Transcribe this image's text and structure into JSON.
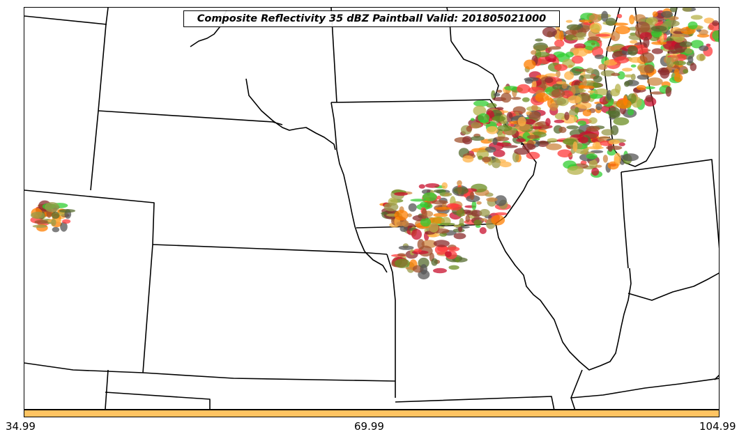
{
  "title": "Composite Reflectivity 35 dBZ Paintball Valid: 201805021000",
  "colorbar": {
    "color": "#ffc462",
    "ticks": [
      "34.99",
      "69.99",
      "104.99"
    ]
  },
  "palette": [
    "#ff3b3b",
    "#ff7f00",
    "#ffb347",
    "#b5b14a",
    "#9a9a4a",
    "#8b2c2c",
    "#c8102e",
    "#32cd32",
    "#6b8e23",
    "#556b2f",
    "#cd853f",
    "#a0522d",
    "#555555"
  ]
}
